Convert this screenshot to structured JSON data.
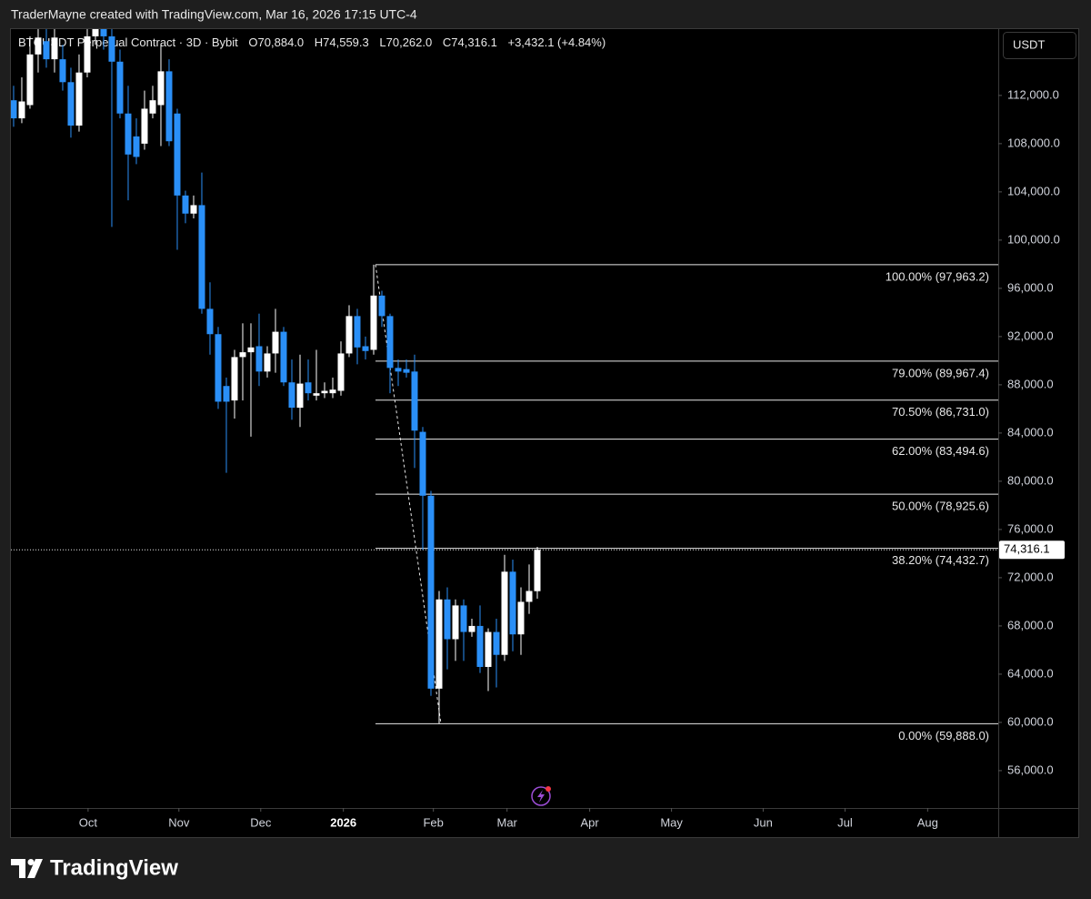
{
  "chart_data": {
    "type": "candlestick",
    "header": "TraderMayne created with TradingView.com, Mar 16, 2026 17:15 UTC-4",
    "title": "BTCUSDT Perpetual Contract · 3D · Bybit",
    "ohlc_legend": [
      "O70,884.0",
      "H74,559.3",
      "L70,262.0",
      "C74,316.1",
      "+3,432.1 (+4.84%)"
    ],
    "unit": "USDT",
    "brand": "TradingView",
    "up_color": "#ffffff",
    "down_color": "#2a8ff7",
    "candles": {
      "open": [
        111600,
        110100,
        111200,
        115400,
        116500,
        115000,
        115000,
        113100,
        109500,
        113900,
        116900,
        118400,
        116900,
        114800,
        110500,
        108600,
        108000,
        110500,
        111200,
        114000,
        110500,
        103700,
        102200,
        102900,
        94300,
        92200,
        87900,
        86700,
        90300,
        90700,
        91200,
        89100,
        90600,
        92400,
        88200,
        86100,
        88200,
        87100,
        87300,
        87300,
        87500,
        90600,
        93700,
        91200,
        90900,
        95400,
        93700,
        89400,
        89300,
        89100,
        84100,
        78800,
        62800,
        70200,
        66900,
        69700,
        67500,
        68000,
        64600,
        67500,
        65600,
        72500,
        67300,
        70000,
        70884
      ],
      "high": [
        112800,
        113500,
        116900,
        117500,
        117500,
        117500,
        116200,
        114300,
        115400,
        117500,
        119900,
        119550,
        117700,
        115800,
        112800,
        110100,
        112400,
        112800,
        116200,
        115000,
        110900,
        104100,
        103700,
        105600,
        96500,
        92800,
        88600,
        90900,
        93100,
        93100,
        93900,
        91200,
        94300,
        92800,
        90100,
        90500,
        90100,
        90900,
        88200,
        88600,
        91600,
        94600,
        94300,
        92000,
        97963.2,
        95800,
        93900,
        90100,
        90100,
        90500,
        84500,
        79200,
        70900,
        71200,
        70200,
        70200,
        68600,
        69700,
        67800,
        68600,
        73900,
        73500,
        71200,
        73100,
        74559.3
      ],
      "low": [
        109400,
        109700,
        110900,
        113900,
        114300,
        113900,
        112400,
        108500,
        109000,
        113500,
        116200,
        115800,
        101100,
        110100,
        103300,
        106300,
        107500,
        110100,
        107800,
        107800,
        99200,
        101400,
        101800,
        93900,
        90500,
        86000,
        80700,
        85200,
        86700,
        83700,
        87900,
        88600,
        89000,
        87900,
        85100,
        84500,
        86700,
        86700,
        86900,
        86900,
        87100,
        90300,
        89700,
        90100,
        90500,
        92800,
        87300,
        87900,
        88600,
        81100,
        74300,
        62200,
        59888,
        64400,
        65100,
        65100,
        67100,
        64100,
        62600,
        62900,
        65100,
        65900,
        65600,
        69000,
        70262
      ],
      "close": [
        110100,
        111500,
        115400,
        116800,
        115000,
        116800,
        113100,
        109500,
        113900,
        116900,
        118400,
        116900,
        114800,
        110500,
        107100,
        106900,
        110900,
        111600,
        114000,
        108200,
        103700,
        102200,
        102900,
        94300,
        92200,
        86600,
        86600,
        90300,
        90700,
        91100,
        89100,
        90600,
        92400,
        88200,
        86100,
        88100,
        87300,
        87300,
        87500,
        87600,
        90600,
        93700,
        91100,
        90800,
        95400,
        93700,
        89400,
        89100,
        89000,
        84200,
        78800,
        62800,
        70200,
        66900,
        69700,
        67500,
        68000,
        64600,
        67500,
        65600,
        72500,
        67300,
        70000,
        70900,
        74316.1
      ]
    },
    "xlim": [
      -0.33,
      120.33
    ],
    "xticks": [
      {
        "value": 9.1,
        "label": "Oct"
      },
      {
        "value": 20.2,
        "label": "Nov"
      },
      {
        "value": 30.2,
        "label": "Dec"
      },
      {
        "value": 40.3,
        "label": "2026"
      },
      {
        "value": 51.3,
        "label": "Feb"
      },
      {
        "value": 60.3,
        "label": "Mar"
      },
      {
        "value": 70.4,
        "label": "Apr"
      },
      {
        "value": 80.4,
        "label": "May"
      },
      {
        "value": 91.6,
        "label": "Jun"
      },
      {
        "value": 101.6,
        "label": "Jul"
      },
      {
        "value": 111.7,
        "label": "Aug"
      }
    ],
    "ylim": [
      52900,
      117500
    ],
    "yticks": [
      {
        "value": 56000,
        "label": "56,000.0"
      },
      {
        "value": 60000,
        "label": "60,000.0"
      },
      {
        "value": 64000,
        "label": "64,000.0"
      },
      {
        "value": 68000,
        "label": "68,000.0"
      },
      {
        "value": 72000,
        "label": "72,000.0"
      },
      {
        "value": 76000,
        "label": "76,000.0"
      },
      {
        "value": 80000,
        "label": "80,000.0"
      },
      {
        "value": 84000,
        "label": "84,000.0"
      },
      {
        "value": 88000,
        "label": "88,000.0"
      },
      {
        "value": 92000,
        "label": "92,000.0"
      },
      {
        "value": 96000,
        "label": "96,000.0"
      },
      {
        "value": 100000,
        "label": "100,000.0"
      },
      {
        "value": 104000,
        "label": "104,000.0"
      },
      {
        "value": 108000,
        "label": "108,000.0"
      },
      {
        "value": 112000,
        "label": "112,000.0"
      }
    ],
    "fib_levels": [
      {
        "value": 97963.2,
        "label": "100.00% (97,963.2)"
      },
      {
        "value": 89967.4,
        "label": "79.00% (89,967.4)"
      },
      {
        "value": 86731.0,
        "label": "70.50% (86,731.0)"
      },
      {
        "value": 83494.6,
        "label": "62.00% (83,494.6)"
      },
      {
        "value": 78925.6,
        "label": "50.00% (78,925.6)"
      },
      {
        "value": 74432.7,
        "label": "38.20% (74,432.7)"
      },
      {
        "value": 59888.0,
        "label": "0.00% (59,888.0)"
      }
    ],
    "last_price": {
      "value": 74316.1,
      "label": "74,316.1"
    }
  }
}
